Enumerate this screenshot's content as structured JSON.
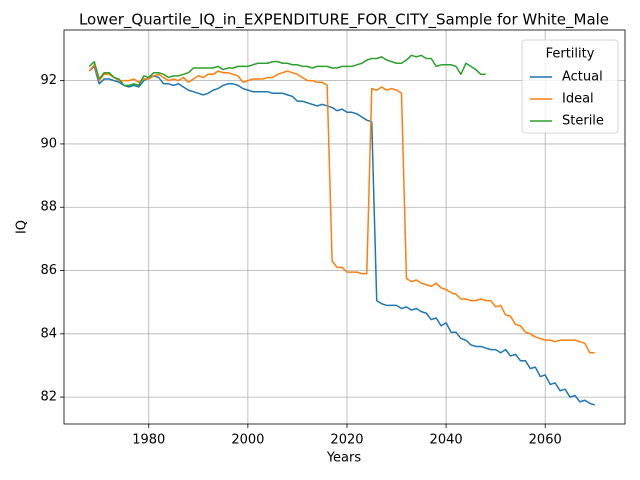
{
  "chart_data": {
    "type": "line",
    "title": "Lower_Quartile_IQ_in_EXPENDITURE_FOR_CITY_Sample for White_Male",
    "xlabel": "Years",
    "ylabel": "IQ",
    "x": [
      1968,
      1969,
      1970,
      1971,
      1972,
      1973,
      1974,
      1975,
      1976,
      1977,
      1978,
      1979,
      1980,
      1981,
      1982,
      1983,
      1984,
      1985,
      1986,
      1987,
      1988,
      1989,
      1990,
      1991,
      1992,
      1993,
      1994,
      1995,
      1996,
      1997,
      1998,
      1999,
      2000,
      2001,
      2002,
      2003,
      2004,
      2005,
      2006,
      2007,
      2008,
      2009,
      2010,
      2011,
      2012,
      2013,
      2014,
      2015,
      2016,
      2017,
      2018,
      2019,
      2020,
      2021,
      2022,
      2023,
      2024,
      2025,
      2026,
      2027,
      2028,
      2029,
      2030,
      2031,
      2032,
      2033,
      2034,
      2035,
      2036,
      2037,
      2038,
      2039,
      2040,
      2041,
      2042,
      2043,
      2044,
      2045,
      2046,
      2047,
      2048,
      2049,
      2050,
      2051,
      2052,
      2053,
      2054,
      2055,
      2056,
      2057,
      2058,
      2059,
      2060,
      2061,
      2062,
      2063,
      2064,
      2065,
      2066,
      2067,
      2068,
      2069,
      2070
    ],
    "series": [
      {
        "name": "Actual",
        "color": "#1f77b4",
        "values": [
          92.3,
          92.45,
          91.9,
          92.05,
          92.05,
          92.0,
          91.95,
          91.85,
          91.8,
          91.85,
          91.8,
          92.0,
          92.1,
          92.15,
          92.1,
          91.9,
          91.9,
          91.85,
          91.9,
          91.8,
          91.7,
          91.65,
          91.6,
          91.55,
          91.6,
          91.7,
          91.75,
          91.85,
          91.9,
          91.9,
          91.85,
          91.75,
          91.7,
          91.65,
          91.65,
          91.65,
          91.65,
          91.6,
          91.6,
          91.6,
          91.55,
          91.5,
          91.35,
          91.35,
          91.3,
          91.25,
          91.2,
          91.25,
          91.2,
          91.15,
          91.05,
          91.1,
          91.0,
          91.0,
          90.95,
          90.85,
          90.75,
          90.7,
          85.05,
          84.95,
          84.9,
          84.9,
          84.9,
          84.8,
          84.85,
          84.75,
          84.8,
          84.7,
          84.65,
          84.45,
          84.5,
          84.25,
          84.35,
          84.05,
          84.05,
          83.85,
          83.8,
          83.65,
          83.6,
          83.6,
          83.55,
          83.5,
          83.5,
          83.4,
          83.5,
          83.3,
          83.35,
          83.15,
          83.15,
          82.9,
          82.95,
          82.65,
          82.7,
          82.4,
          82.45,
          82.2,
          82.25,
          82.0,
          82.05,
          81.85,
          81.9,
          81.8,
          81.75
        ]
      },
      {
        "name": "Ideal",
        "color": "#ff7f0e",
        "values": [
          92.3,
          92.5,
          92.0,
          92.2,
          92.2,
          92.1,
          92.0,
          92.0,
          92.0,
          92.05,
          91.95,
          92.05,
          92.05,
          92.15,
          92.2,
          92.1,
          92.0,
          92.05,
          92.0,
          92.1,
          91.95,
          92.05,
          92.15,
          92.1,
          92.2,
          92.2,
          92.3,
          92.25,
          92.25,
          92.2,
          92.15,
          91.95,
          92.0,
          92.05,
          92.05,
          92.05,
          92.1,
          92.1,
          92.2,
          92.25,
          92.3,
          92.25,
          92.2,
          92.1,
          92.0,
          92.0,
          91.95,
          91.95,
          91.85,
          86.3,
          86.1,
          86.1,
          85.95,
          85.95,
          85.95,
          85.9,
          85.9,
          91.75,
          91.7,
          91.8,
          91.7,
          91.75,
          91.7,
          91.6,
          85.75,
          85.65,
          85.7,
          85.6,
          85.55,
          85.5,
          85.6,
          85.45,
          85.4,
          85.3,
          85.25,
          85.1,
          85.1,
          85.05,
          85.05,
          85.1,
          85.05,
          85.05,
          84.85,
          84.9,
          84.6,
          84.55,
          84.3,
          84.25,
          84.05,
          84.0,
          83.9,
          83.85,
          83.8,
          83.8,
          83.75,
          83.8,
          83.8,
          83.8,
          83.8,
          83.75,
          83.7,
          83.4,
          83.4
        ]
      },
      {
        "name": "Sterile",
        "color": "#2ca02c",
        "values": [
          92.45,
          92.6,
          92.05,
          92.25,
          92.25,
          92.1,
          92.05,
          91.85,
          91.85,
          91.9,
          91.85,
          92.15,
          92.1,
          92.25,
          92.25,
          92.2,
          92.1,
          92.15,
          92.15,
          92.2,
          92.25,
          92.4,
          92.4,
          92.4,
          92.4,
          92.4,
          92.45,
          92.35,
          92.4,
          92.4,
          92.45,
          92.45,
          92.45,
          92.5,
          92.55,
          92.55,
          92.55,
          92.6,
          92.6,
          92.55,
          92.55,
          92.5,
          92.5,
          92.45,
          92.45,
          92.4,
          92.45,
          92.45,
          92.45,
          92.4,
          92.4,
          92.45,
          92.45,
          92.45,
          92.5,
          92.55,
          92.65,
          92.7,
          92.7,
          92.75,
          92.65,
          92.6,
          92.55,
          92.55,
          92.65,
          92.8,
          92.75,
          92.8,
          92.7,
          92.7,
          92.45,
          92.5,
          92.5,
          92.5,
          92.45,
          92.2,
          92.55,
          92.45,
          92.35,
          92.2,
          92.2,
          null,
          null,
          null,
          null,
          null,
          null,
          null,
          null,
          null,
          null,
          null,
          null,
          null,
          null,
          null,
          null,
          null,
          null,
          null,
          null,
          null,
          null
        ]
      }
    ],
    "xlim": [
      1962.9,
      2076.1
    ],
    "ylim": [
      81.15,
      93.6
    ],
    "xticks": [
      1980,
      2000,
      2020,
      2040,
      2060
    ],
    "yticks": [
      82,
      84,
      86,
      88,
      90,
      92
    ],
    "grid": true,
    "legend_title": "Fertility",
    "legend_position": "upper right"
  }
}
